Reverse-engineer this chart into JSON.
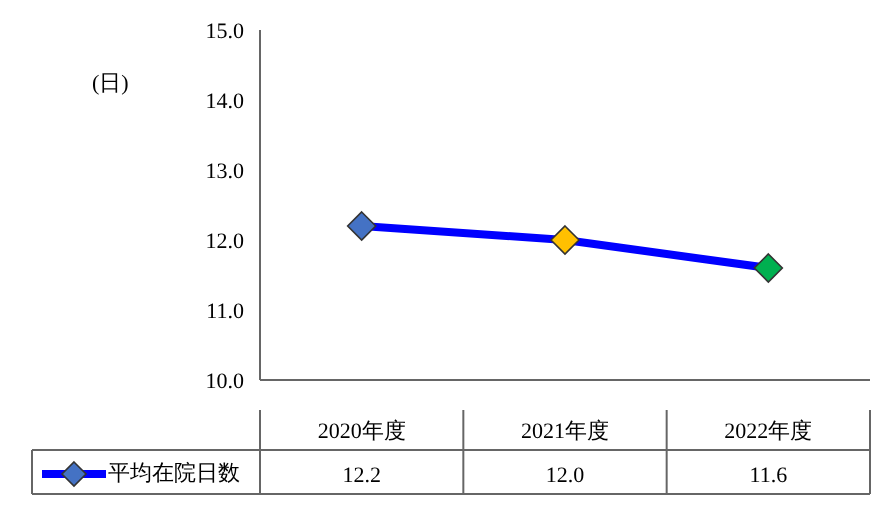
{
  "chart_data": {
    "type": "line",
    "ylabel": "(日)",
    "categories": [
      "2020年度",
      "2021年度",
      "2022年度"
    ],
    "series": [
      {
        "name": "平均在院日数",
        "color": "#0000ff",
        "colors": [
          "#4472c4",
          "#ffc000",
          "#00b050"
        ],
        "values": [
          12.2,
          12.0,
          11.6
        ],
        "value_labels": [
          "12.2",
          "12.0",
          "11.6"
        ]
      }
    ],
    "ylim": [
      10,
      15
    ],
    "yticks": [
      {
        "value": 10,
        "label": "10.0"
      },
      {
        "value": 11,
        "label": "11.0"
      },
      {
        "value": 12,
        "label": "12.0"
      },
      {
        "value": 13,
        "label": "13.0"
      },
      {
        "value": 14,
        "label": "14.0"
      },
      {
        "value": 15,
        "label": "15.0"
      }
    ],
    "legend": "bottom left",
    "marker": "diamond",
    "line_style": "solid"
  }
}
